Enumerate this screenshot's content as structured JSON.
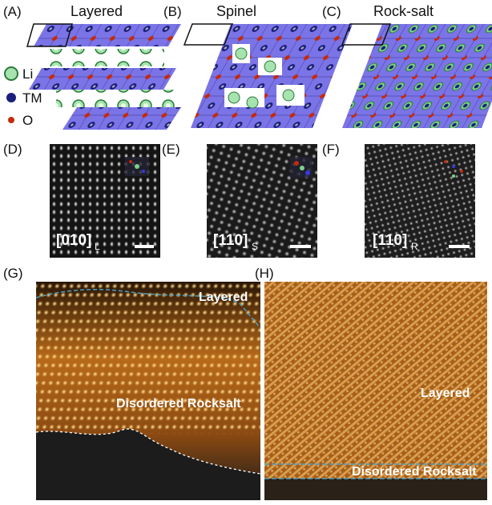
{
  "panels": [
    {
      "label": "(A)",
      "title": "Layered"
    },
    {
      "label": "(B)",
      "title": "Spinel"
    },
    {
      "label": "(C)",
      "title": "Rock-salt"
    },
    {
      "label": "(D)",
      "zone": "[010]",
      "sub": "L"
    },
    {
      "label": "(E)",
      "zone": "[110]",
      "sub": "S"
    },
    {
      "label": "(F)",
      "zone": "[110]",
      "sub": "R"
    },
    {
      "label": "(G)",
      "regions": [
        "Layered",
        "Disordered Rocksalt"
      ]
    },
    {
      "label": "(H)",
      "regions": [
        "Layered",
        "Disordered Rocksalt"
      ]
    }
  ],
  "legend": [
    "Li",
    "TM",
    "O"
  ]
}
